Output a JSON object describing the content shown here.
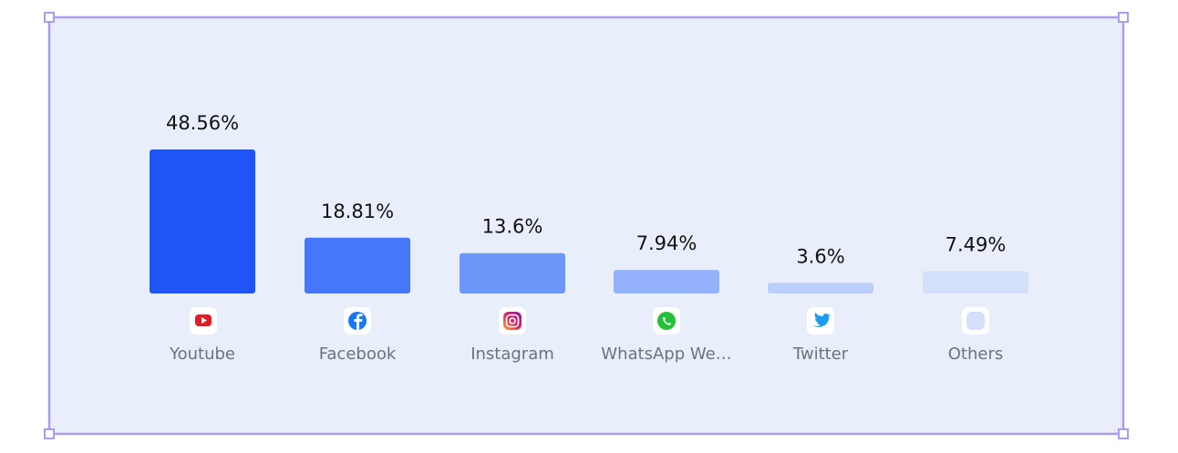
{
  "chart_data": {
    "type": "bar",
    "categories": [
      "Youtube",
      "Facebook",
      "Instagram",
      "WhatsApp We…",
      "Twitter",
      "Others"
    ],
    "values": [
      48.56,
      18.81,
      13.6,
      7.94,
      3.6,
      7.49
    ],
    "value_labels": [
      "48.56%",
      "18.81%",
      "13.6%",
      "7.94%",
      "3.6%",
      "7.49%"
    ],
    "colors": [
      "#1f55f6",
      "#4577fb",
      "#6e97fc",
      "#94b2fb",
      "#bccffb",
      "#d3dffb"
    ]
  }
}
